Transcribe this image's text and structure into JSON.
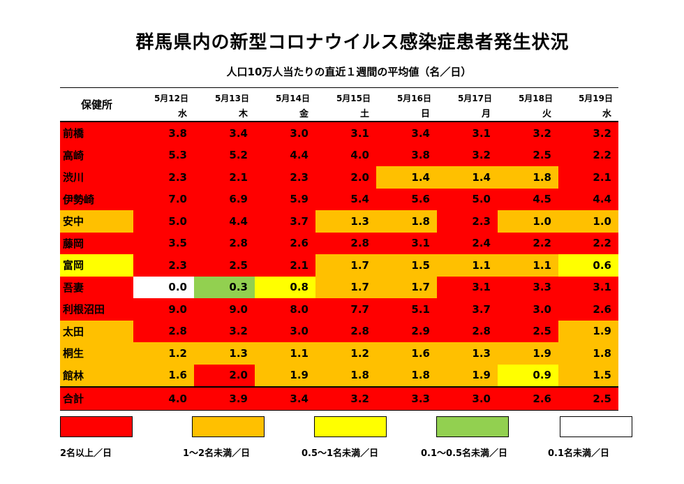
{
  "title": "群馬県内の新型コロナウイルス感染症患者発生状況",
  "subtitle": "人口10万人当たりの直近１週間の平均値（名／日）",
  "chart_data": {
    "type": "heatmap",
    "title": "群馬県内の新型コロナウイルス感染症患者発生状況",
    "subtitle": "人口10万人当たりの直近１週間の平均値（名／日）",
    "corner_label": "保健所",
    "dates": [
      "5月12日",
      "5月13日",
      "5月14日",
      "5月15日",
      "5月16日",
      "5月17日",
      "5月18日",
      "5月19日"
    ],
    "weekdays": [
      "水",
      "木",
      "金",
      "土",
      "日",
      "月",
      "火",
      "水"
    ],
    "rows": [
      {
        "office": "前橋",
        "values": [
          "3.8",
          "3.4",
          "3.0",
          "3.1",
          "3.4",
          "3.1",
          "3.2",
          "3.2"
        ]
      },
      {
        "office": "高崎",
        "values": [
          "5.3",
          "5.2",
          "4.4",
          "4.0",
          "3.8",
          "3.2",
          "2.5",
          "2.2"
        ]
      },
      {
        "office": "渋川",
        "values": [
          "2.3",
          "2.1",
          "2.3",
          "2.0",
          "1.4",
          "1.4",
          "1.8",
          "2.1"
        ]
      },
      {
        "office": "伊勢崎",
        "values": [
          "7.0",
          "6.9",
          "5.9",
          "5.4",
          "5.6",
          "5.0",
          "4.5",
          "4.4"
        ]
      },
      {
        "office": "安中",
        "values": [
          "5.0",
          "4.4",
          "3.7",
          "1.3",
          "1.8",
          "2.3",
          "1.0",
          "1.0"
        ]
      },
      {
        "office": "藤岡",
        "values": [
          "3.5",
          "2.8",
          "2.6",
          "2.8",
          "3.1",
          "2.4",
          "2.2",
          "2.2"
        ]
      },
      {
        "office": "富岡",
        "values": [
          "2.3",
          "2.5",
          "2.1",
          "1.7",
          "1.5",
          "1.1",
          "1.1",
          "0.6"
        ]
      },
      {
        "office": "吾妻",
        "values": [
          "0.0",
          "0.3",
          "0.8",
          "1.7",
          "1.7",
          "3.1",
          "3.3",
          "3.1"
        ]
      },
      {
        "office": "利根沼田",
        "values": [
          "9.0",
          "9.0",
          "8.0",
          "7.7",
          "5.1",
          "3.7",
          "3.0",
          "2.6"
        ]
      },
      {
        "office": "太田",
        "values": [
          "2.8",
          "3.2",
          "3.0",
          "2.8",
          "2.9",
          "2.8",
          "2.5",
          "1.9"
        ]
      },
      {
        "office": "桐生",
        "values": [
          "1.2",
          "1.3",
          "1.1",
          "1.2",
          "1.6",
          "1.3",
          "1.9",
          "1.8"
        ]
      },
      {
        "office": "館林",
        "values": [
          "1.6",
          "2.0",
          "1.9",
          "1.8",
          "1.8",
          "1.9",
          "0.9",
          "1.5"
        ]
      },
      {
        "office": "合計",
        "values": [
          "4.0",
          "3.9",
          "3.4",
          "3.2",
          "3.3",
          "3.0",
          "2.6",
          "2.5"
        ]
      }
    ],
    "color_scale": [
      {
        "label": "2名以上／日",
        "min": 2.0,
        "color": "#ff0000"
      },
      {
        "label": "1～2名未満／日",
        "min": 1.0,
        "color": "#ffc000"
      },
      {
        "label": "0.5～1名未満／日",
        "min": 0.5,
        "color": "#ffff00"
      },
      {
        "label": "0.1～0.5名未満／日",
        "min": 0.1,
        "color": "#92d050"
      },
      {
        "label": "0.1名未満／日",
        "min": 0.0,
        "color": "#ffffff"
      }
    ],
    "office_colors": {
      "前橋": "#ff0000",
      "高崎": "#ff0000",
      "渋川": "#ff0000",
      "伊勢崎": "#ff0000",
      "安中": "#ffc000",
      "藤岡": "#ff0000",
      "富岡": "#ffff00",
      "吾妻": "#ff0000",
      "利根沼田": "#ff0000",
      "太田": "#ffc000",
      "桐生": "#ffc000",
      "館林": "#ffc000",
      "合計": "#ff0000"
    }
  }
}
